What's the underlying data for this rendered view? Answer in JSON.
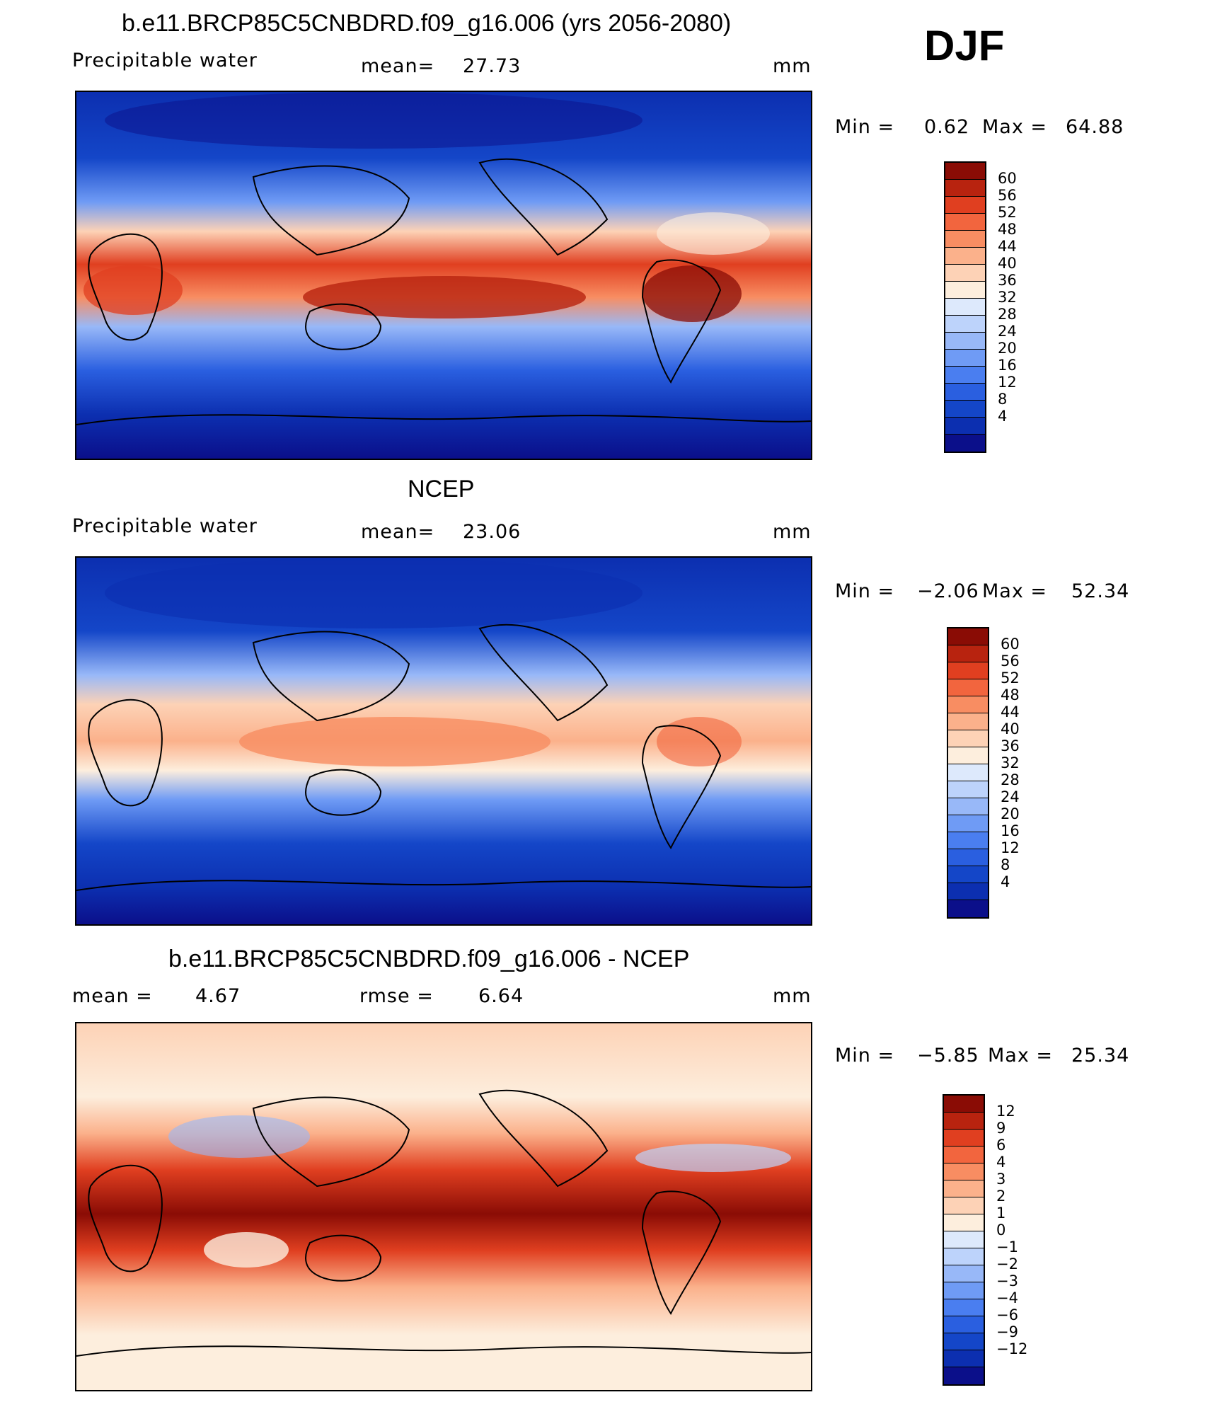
{
  "season": "DJF",
  "colors": {
    "abs_scale": [
      "#0b0f8a",
      "#0c2fb0",
      "#1446c8",
      "#2a5fe0",
      "#4a7ef0",
      "#6f9bf5",
      "#98b8f8",
      "#bdd3fb",
      "#dde9fc",
      "#fdeedd",
      "#fdd2b6",
      "#fbb18b",
      "#f88d62",
      "#f2653e",
      "#e03f20",
      "#b8230f",
      "#8a0c05"
    ],
    "diff_scale": [
      "#0b0f8a",
      "#0c2fb0",
      "#1446c8",
      "#2a5fe0",
      "#4a7ef0",
      "#6f9bf5",
      "#98b8f8",
      "#bdd3fb",
      "#dde9fc",
      "#fdeedd",
      "#fdd2b6",
      "#fbb18b",
      "#f88d62",
      "#f2653e",
      "#e03f20",
      "#b8230f",
      "#8a0c05"
    ]
  },
  "chart_data": [
    {
      "type": "heatmap",
      "title": "b.e11.BRCP85C5CNBDRD.f09_g16.006 (yrs 2056-2080)",
      "variable": "Precipitable water",
      "mean_label": "mean=",
      "mean_value": "27.73",
      "units": "mm",
      "min_label": "Min =",
      "min_value": "0.62",
      "max_label": "Max =",
      "max_value": "64.88",
      "levels": [
        "60",
        "56",
        "52",
        "48",
        "44",
        "40",
        "36",
        "32",
        "28",
        "24",
        "20",
        "16",
        "12",
        "8",
        "4"
      ]
    },
    {
      "type": "heatmap",
      "title": "NCEP",
      "variable": "Precipitable water",
      "mean_label": "mean=",
      "mean_value": "23.06",
      "units": "mm",
      "min_label": "Min =",
      "min_value": "−2.06",
      "max_label": "Max =",
      "max_value": "52.34",
      "levels": [
        "60",
        "56",
        "52",
        "48",
        "44",
        "40",
        "36",
        "32",
        "28",
        "24",
        "20",
        "16",
        "12",
        "8",
        "4"
      ]
    },
    {
      "type": "heatmap",
      "title": "b.e11.BRCP85C5CNBDRD.f09_g16.006 - NCEP",
      "mean_label": "mean =",
      "mean_value": "4.67",
      "rmse_label": "rmse =",
      "rmse_value": "6.64",
      "units": "mm",
      "min_label": "Min =",
      "min_value": "−5.85",
      "max_label": "Max =",
      "max_value": "25.34",
      "levels": [
        "12",
        "9",
        "6",
        "4",
        "3",
        "2",
        "1",
        "0",
        "−1",
        "−2",
        "−3",
        "−4",
        "−6",
        "−9",
        "−12"
      ]
    }
  ]
}
